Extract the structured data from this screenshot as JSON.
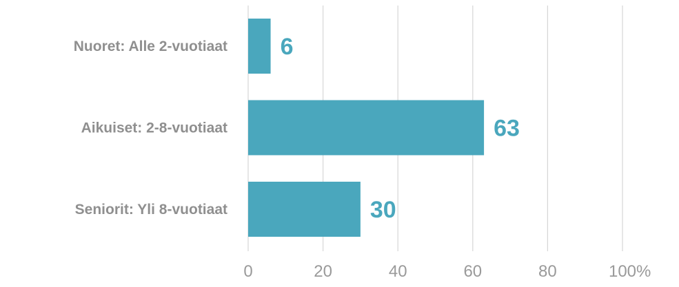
{
  "chart_data": {
    "type": "bar",
    "orientation": "horizontal",
    "categories": [
      "Nuoret: Alle 2-vuotiaat",
      "Aikuiset: 2-8-vuotiaat",
      "Seniorit: Yli 8-vuotiaat"
    ],
    "values": [
      6,
      63,
      30
    ],
    "title": "",
    "xlabel": "",
    "ylabel": "",
    "xlim": [
      0,
      100
    ],
    "ticks": [
      0,
      20,
      40,
      60,
      80,
      100
    ],
    "tick_labels": [
      "0",
      "20",
      "40",
      "60",
      "80",
      "100"
    ],
    "unit": "%",
    "grid": true,
    "legend": "none",
    "colors": {
      "bar": "#4aa7bd",
      "value_label": "#4aa7bd",
      "grid": "#d6d6d6",
      "text": "#8f8f8f"
    }
  }
}
